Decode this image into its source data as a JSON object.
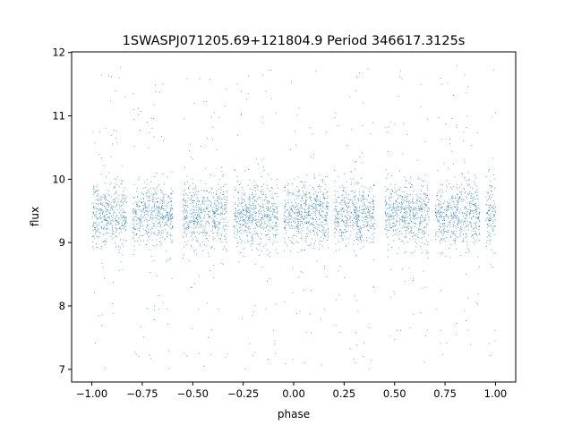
{
  "chart_data": {
    "type": "scatter",
    "title": "1SWASPJ071205.69+121804.9 Period 346617.3125s",
    "xlabel": "phase",
    "ylabel": "flux",
    "xlim": [
      -1.1,
      1.1
    ],
    "ylim": [
      6.8,
      12.01
    ],
    "xticks": [
      -1.0,
      -0.75,
      -0.5,
      -0.25,
      0.0,
      0.25,
      0.5,
      0.75,
      1.0
    ],
    "xtick_labels": [
      "−1.00",
      "−0.75",
      "−0.50",
      "−0.25",
      "0.00",
      "0.25",
      "0.50",
      "0.75",
      "1.00"
    ],
    "yticks": [
      7,
      8,
      9,
      10,
      11,
      12
    ],
    "ytick_labels": [
      "7",
      "8",
      "9",
      "10",
      "11",
      "12"
    ],
    "grid": false,
    "marker_color": "#1f77b4",
    "phase_segments": [
      [
        -1.0,
        -0.83
      ],
      [
        -0.8,
        -0.6
      ],
      [
        -0.55,
        -0.33
      ],
      [
        -0.3,
        -0.08
      ],
      [
        -0.05,
        0.17
      ],
      [
        0.2,
        0.4
      ],
      [
        0.45,
        0.67
      ],
      [
        0.7,
        0.92
      ],
      [
        0.95,
        1.0
      ]
    ],
    "flux_core_range": [
      9.0,
      10.0
    ],
    "flux_median": 9.45,
    "flux_outlier_range": [
      7.0,
      11.8
    ]
  }
}
